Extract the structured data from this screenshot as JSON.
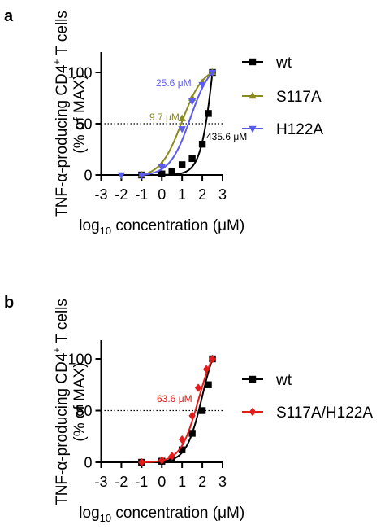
{
  "panels": [
    {
      "letter": "a",
      "ylabel_main": "TNF-α-producing CD4",
      "ylabel_sup": "+",
      "ylabel_tail": " T cells",
      "ylabel2": "(% of MAX)",
      "xlabel_pre": "log",
      "xlabel_sub": "10",
      "xlabel_post": " concentration (μM)"
    },
    {
      "letter": "b",
      "ylabel_main": "TNF-α-producing CD4",
      "ylabel_sup": "+",
      "ylabel_tail": " T cells",
      "ylabel2": "(% of MAX)",
      "xlabel_pre": "log",
      "xlabel_sub": "10",
      "xlabel_post": " concentration (μM)"
    }
  ],
  "chart_data": [
    {
      "type": "line",
      "title": "",
      "xlim": [
        -3,
        3
      ],
      "ylim": [
        0,
        100
      ],
      "xticks": [
        "-3",
        "-2",
        "-1",
        "0",
        "1",
        "2",
        "3"
      ],
      "yticks": [
        "0",
        "50",
        "100"
      ],
      "reference_line": {
        "y": 50,
        "style": "dotted"
      },
      "grid": false,
      "legend_position": "right",
      "series": [
        {
          "name": "wt",
          "color": "#000000",
          "marker": "square",
          "points": [
            [
              -1,
              0
            ],
            [
              0,
              1
            ],
            [
              0.5,
              3
            ],
            [
              1,
              10
            ],
            [
              1.5,
              16
            ],
            [
              2,
              30
            ],
            [
              2.3,
              60
            ],
            [
              2.5,
              100
            ]
          ],
          "fit": {
            "ec50_log": 2.64,
            "hill": 1.3
          }
        },
        {
          "name": "S117A",
          "color": "#8a8a1e",
          "marker": "triangle-up",
          "points": [
            [
              -1,
              0
            ],
            [
              0,
              10
            ],
            [
              1,
              55
            ],
            [
              1.5,
              75
            ],
            [
              2,
              90
            ],
            [
              2.5,
              100
            ]
          ],
          "fit": {
            "ec50_log": 0.99,
            "hill": 0.82
          }
        },
        {
          "name": "H122A",
          "color": "#5b5bf0",
          "marker": "triangle-down",
          "points": [
            [
              -2,
              0
            ],
            [
              -1,
              0
            ],
            [
              0,
              8
            ],
            [
              1,
              45
            ],
            [
              1.5,
              72
            ],
            [
              2,
              88
            ],
            [
              2.5,
              100
            ]
          ],
          "fit": {
            "ec50_log": 1.41,
            "hill": 0.85
          }
        }
      ],
      "annotations": [
        {
          "text": "25.6 μM",
          "series": "H122A",
          "color": "#5b5bf0"
        },
        {
          "text": "9.7 μM",
          "series": "S117A",
          "color": "#8a8a1e"
        },
        {
          "text": "435.6 μM",
          "series": "wt",
          "color": "#000000"
        }
      ]
    },
    {
      "type": "line",
      "title": "",
      "xlim": [
        -3,
        3
      ],
      "ylim": [
        0,
        100
      ],
      "xticks": [
        "-3",
        "-2",
        "-1",
        "0",
        "1",
        "2",
        "3"
      ],
      "yticks": [
        "0",
        "50",
        "100"
      ],
      "reference_line": {
        "y": 50,
        "style": "dotted"
      },
      "grid": false,
      "legend_position": "right",
      "series": [
        {
          "name": "wt",
          "color": "#000000",
          "marker": "square",
          "points": [
            [
              -1,
              0
            ],
            [
              0,
              1
            ],
            [
              0.5,
              3
            ],
            [
              1,
              12
            ],
            [
              1.5,
              28
            ],
            [
              2,
              50
            ],
            [
              2.3,
              75
            ],
            [
              2.5,
              100
            ]
          ],
          "fit": {
            "ec50_log": 2.0,
            "hill": 1.1
          }
        },
        {
          "name": "S117A/H122A",
          "color": "#e21b1b",
          "marker": "diamond",
          "points": [
            [
              -1,
              0
            ],
            [
              0,
              2
            ],
            [
              0.5,
              6
            ],
            [
              1,
              22
            ],
            [
              1.5,
              45
            ],
            [
              1.8,
              72
            ],
            [
              2.2,
              90
            ],
            [
              2.5,
              100
            ]
          ],
          "fit": {
            "ec50_log": 1.8,
            "hill": 1.0
          }
        }
      ],
      "annotations": [
        {
          "text": "63.6 μM",
          "series": "S117A/H122A",
          "color": "#e21b1b"
        }
      ]
    }
  ]
}
